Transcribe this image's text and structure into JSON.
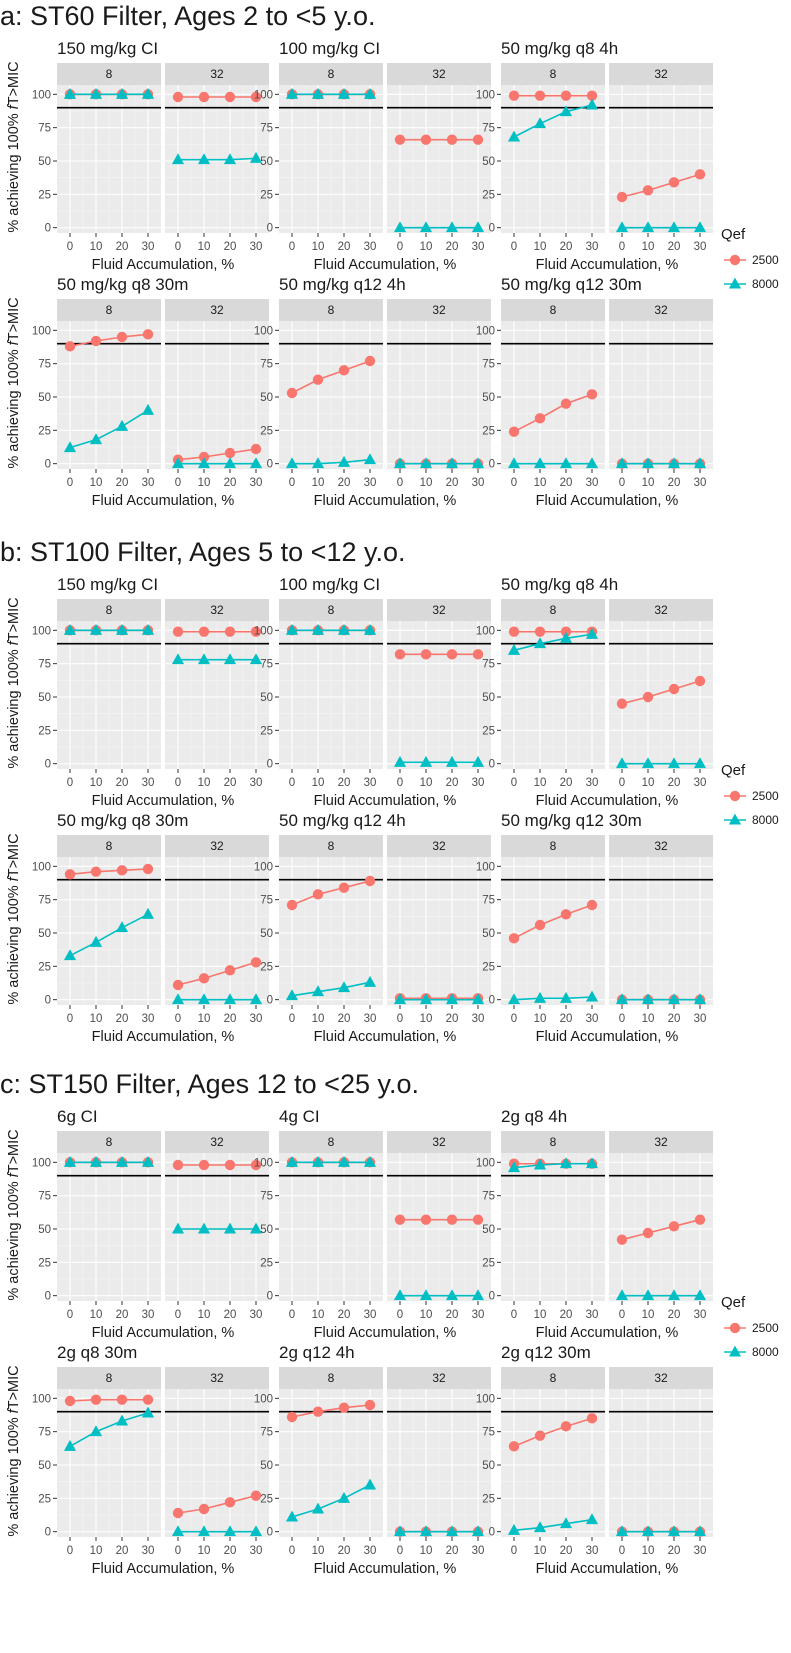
{
  "chart_data": {
    "type": "line",
    "facet_values": [
      "8",
      "32"
    ],
    "x": [
      0,
      10,
      20,
      30
    ],
    "x_tick_labels": [
      "0",
      "10",
      "20",
      "30"
    ],
    "y_ticks": [
      0,
      25,
      50,
      75,
      100
    ],
    "ylim": [
      -4,
      107
    ],
    "reference_line_y": 90,
    "xlabel": "Fluid Accumulation, %",
    "ylabel": "% achieving 100% fT>MIC",
    "ylabel_parts": [
      "% achieving 100% ",
      "f",
      "T>MIC"
    ],
    "grid": true,
    "legend": {
      "title": "Qef",
      "position": "right",
      "entries": [
        {
          "label": "2500",
          "color": "#F8766D",
          "marker": "circle"
        },
        {
          "label": "8000",
          "color": "#00BFC4",
          "marker": "triangle"
        }
      ]
    },
    "sections": [
      {
        "title": "a: ST60 Filter, Ages 2 to <5 y.o.",
        "panels": [
          {
            "title": "150 mg/kg CI",
            "facets": {
              "8": {
                "2500": [
                  100,
                  100,
                  100,
                  100
                ],
                "8000": [
                  100,
                  100,
                  100,
                  100
                ]
              },
              "32": {
                "2500": [
                  98,
                  98,
                  98,
                  98
                ],
                "8000": [
                  51,
                  51,
                  51,
                  52
                ]
              }
            }
          },
          {
            "title": "100 mg/kg CI",
            "facets": {
              "8": {
                "2500": [
                  100,
                  100,
                  100,
                  100
                ],
                "8000": [
                  100,
                  100,
                  100,
                  100
                ]
              },
              "32": {
                "2500": [
                  66,
                  66,
                  66,
                  66
                ],
                "8000": [
                  0,
                  0,
                  0,
                  0
                ]
              }
            }
          },
          {
            "title": "50 mg/kg q8 4h",
            "facets": {
              "8": {
                "2500": [
                  99,
                  99,
                  99,
                  99
                ],
                "8000": [
                  68,
                  78,
                  87,
                  92
                ]
              },
              "32": {
                "2500": [
                  23,
                  28,
                  34,
                  40
                ],
                "8000": [
                  0,
                  0,
                  0,
                  0
                ]
              }
            }
          },
          {
            "title": "50 mg/kg q8 30m",
            "facets": {
              "8": {
                "2500": [
                  88,
                  92,
                  95,
                  97
                ],
                "8000": [
                  12,
                  18,
                  28,
                  40
                ]
              },
              "32": {
                "2500": [
                  3,
                  5,
                  8,
                  11
                ],
                "8000": [
                  0,
                  0,
                  0,
                  0
                ]
              }
            }
          },
          {
            "title": "50 mg/kg q12 4h",
            "facets": {
              "8": {
                "2500": [
                  53,
                  63,
                  70,
                  77
                ],
                "8000": [
                  0,
                  0,
                  1,
                  3
                ]
              },
              "32": {
                "2500": [
                  0,
                  0,
                  0,
                  0
                ],
                "8000": [
                  0,
                  0,
                  0,
                  0
                ]
              }
            }
          },
          {
            "title": "50 mg/kg q12 30m",
            "facets": {
              "8": {
                "2500": [
                  24,
                  34,
                  45,
                  52
                ],
                "8000": [
                  0,
                  0,
                  0,
                  0
                ]
              },
              "32": {
                "2500": [
                  0,
                  0,
                  0,
                  0
                ],
                "8000": [
                  0,
                  0,
                  0,
                  0
                ]
              }
            }
          }
        ]
      },
      {
        "title": "b: ST100 Filter, Ages 5 to <12 y.o.",
        "panels": [
          {
            "title": "150 mg/kg CI",
            "facets": {
              "8": {
                "2500": [
                  100,
                  100,
                  100,
                  100
                ],
                "8000": [
                  100,
                  100,
                  100,
                  100
                ]
              },
              "32": {
                "2500": [
                  99,
                  99,
                  99,
                  99
                ],
                "8000": [
                  78,
                  78,
                  78,
                  78
                ]
              }
            }
          },
          {
            "title": "100 mg/kg CI",
            "facets": {
              "8": {
                "2500": [
                  100,
                  100,
                  100,
                  100
                ],
                "8000": [
                  100,
                  100,
                  100,
                  100
                ]
              },
              "32": {
                "2500": [
                  82,
                  82,
                  82,
                  82
                ],
                "8000": [
                  1,
                  1,
                  1,
                  1
                ]
              }
            }
          },
          {
            "title": "50 mg/kg q8 4h",
            "facets": {
              "8": {
                "2500": [
                  99,
                  99,
                  99,
                  99
                ],
                "8000": [
                  85,
                  90,
                  94,
                  97
                ]
              },
              "32": {
                "2500": [
                  45,
                  50,
                  56,
                  62
                ],
                "8000": [
                  0,
                  0,
                  0,
                  0
                ]
              }
            }
          },
          {
            "title": "50 mg/kg q8 30m",
            "facets": {
              "8": {
                "2500": [
                  94,
                  96,
                  97,
                  98
                ],
                "8000": [
                  33,
                  43,
                  54,
                  64
                ]
              },
              "32": {
                "2500": [
                  11,
                  16,
                  22,
                  28
                ],
                "8000": [
                  0,
                  0,
                  0,
                  0
                ]
              }
            }
          },
          {
            "title": "50 mg/kg q12 4h",
            "facets": {
              "8": {
                "2500": [
                  71,
                  79,
                  84,
                  89
                ],
                "8000": [
                  3,
                  6,
                  9,
                  13
                ]
              },
              "32": {
                "2500": [
                  1,
                  1,
                  1,
                  1
                ],
                "8000": [
                  0,
                  0,
                  0,
                  0
                ]
              }
            }
          },
          {
            "title": "50 mg/kg q12 30m",
            "facets": {
              "8": {
                "2500": [
                  46,
                  56,
                  64,
                  71
                ],
                "8000": [
                  0,
                  1,
                  1,
                  2
                ]
              },
              "32": {
                "2500": [
                  0,
                  0,
                  0,
                  0
                ],
                "8000": [
                  0,
                  0,
                  0,
                  0
                ]
              }
            }
          }
        ]
      },
      {
        "title": "c: ST150 Filter, Ages 12 to <25 y.o.",
        "panels": [
          {
            "title": "6g CI",
            "facets": {
              "8": {
                "2500": [
                  100,
                  100,
                  100,
                  100
                ],
                "8000": [
                  100,
                  100,
                  100,
                  100
                ]
              },
              "32": {
                "2500": [
                  98,
                  98,
                  98,
                  98
                ],
                "8000": [
                  50,
                  50,
                  50,
                  50
                ]
              }
            }
          },
          {
            "title": "4g CI",
            "facets": {
              "8": {
                "2500": [
                  100,
                  100,
                  100,
                  100
                ],
                "8000": [
                  100,
                  100,
                  100,
                  100
                ]
              },
              "32": {
                "2500": [
                  57,
                  57,
                  57,
                  57
                ],
                "8000": [
                  0,
                  0,
                  0,
                  0
                ]
              }
            }
          },
          {
            "title": "2g q8 4h",
            "facets": {
              "8": {
                "2500": [
                  99,
                  99,
                  99,
                  99
                ],
                "8000": [
                  96,
                  98,
                  99,
                  99
                ]
              },
              "32": {
                "2500": [
                  42,
                  47,
                  52,
                  57
                ],
                "8000": [
                  0,
                  0,
                  0,
                  0
                ]
              }
            }
          },
          {
            "title": "2g q8 30m",
            "facets": {
              "8": {
                "2500": [
                  98,
                  99,
                  99,
                  99
                ],
                "8000": [
                  64,
                  75,
                  83,
                  89
                ]
              },
              "32": {
                "2500": [
                  14,
                  17,
                  22,
                  27
                ],
                "8000": [
                  0,
                  0,
                  0,
                  0
                ]
              }
            }
          },
          {
            "title": "2g q12 4h",
            "facets": {
              "8": {
                "2500": [
                  86,
                  90,
                  93,
                  95
                ],
                "8000": [
                  11,
                  17,
                  25,
                  35
                ]
              },
              "32": {
                "2500": [
                  0,
                  0,
                  0,
                  0
                ],
                "8000": [
                  0,
                  0,
                  0,
                  0
                ]
              }
            }
          },
          {
            "title": "2g q12 30m",
            "facets": {
              "8": {
                "2500": [
                  64,
                  72,
                  79,
                  85
                ],
                "8000": [
                  1,
                  3,
                  6,
                  9
                ]
              },
              "32": {
                "2500": [
                  0,
                  0,
                  0,
                  0
                ],
                "8000": [
                  0,
                  0,
                  0,
                  0
                ]
              }
            }
          }
        ]
      }
    ]
  }
}
